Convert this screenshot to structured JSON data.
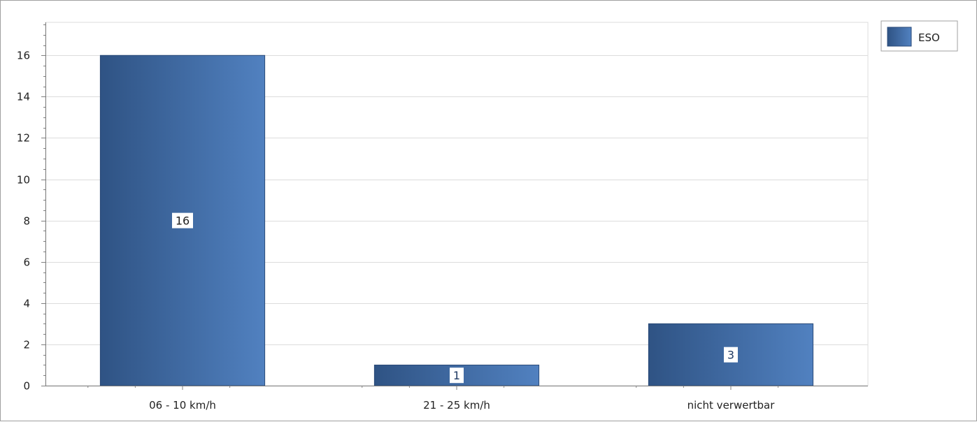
{
  "chart_data": {
    "type": "bar",
    "title": "",
    "xlabel": "",
    "ylabel": "",
    "categories": [
      "06 - 10 km/h",
      "21 - 25 km/h",
      "nicht verwertbar"
    ],
    "series": [
      {
        "name": "ESO",
        "values": [
          16,
          1,
          3
        ],
        "color_dark": "#2f5384",
        "color_light": "#5181c0"
      }
    ],
    "ylim": [
      0,
      17.6
    ],
    "yticks": [
      0,
      2,
      4,
      6,
      8,
      10,
      12,
      14,
      16
    ],
    "data_labels": [
      "16",
      "1",
      "3"
    ],
    "grid": "horizontal",
    "legend_position": "top-right"
  },
  "colors": {
    "grid": "#dcdcdc",
    "axis": "#808080",
    "label_text": "#222222",
    "data_label_text_dark": "#1f3a63"
  }
}
